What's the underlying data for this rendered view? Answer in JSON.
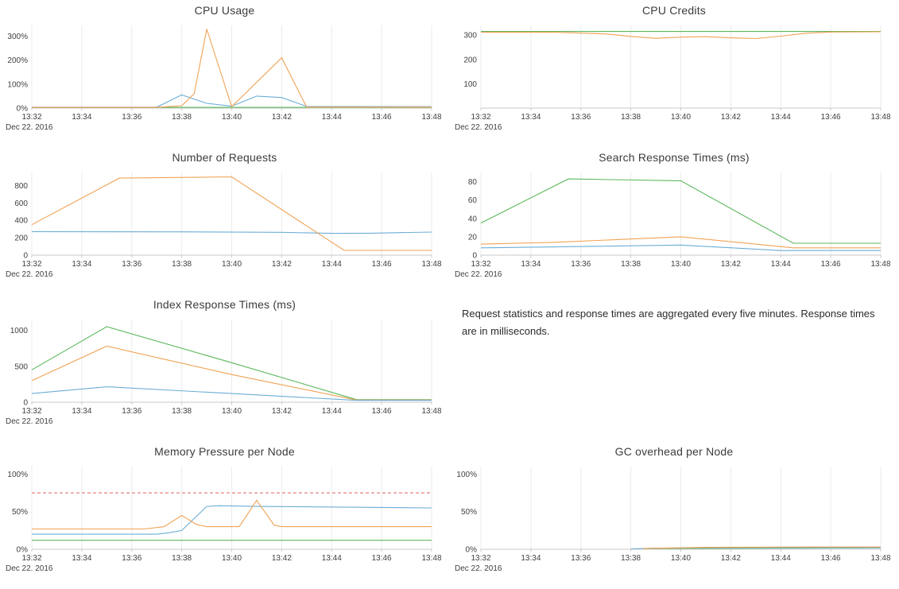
{
  "note": {
    "text": "Request statistics and response times are aggregated every five minutes. Response times are in milliseconds."
  },
  "palette": {
    "blue": "#6baed6",
    "orange": "#f0a254",
    "green": "#5cb85c",
    "threshold_red": "#e57373",
    "axis": "#c8c8c8",
    "grid": "#ebebeb",
    "tick_text": "#404040"
  },
  "chart_data": [
    {
      "title": "CPU Usage",
      "type": "line",
      "x_date": "Dec 22. 2016",
      "x_ticks": [
        "13:32",
        "13:34",
        "13:36",
        "13:38",
        "13:40",
        "13:42",
        "13:44",
        "13:46",
        "13:48"
      ],
      "xlim": [
        0,
        16
      ],
      "ylim": [
        0,
        345
      ],
      "grid": "vertical",
      "legend": "none",
      "y_ticks": [
        {
          "v": 0,
          "label": "0%"
        },
        {
          "v": 100,
          "label": "100%"
        },
        {
          "v": 200,
          "label": "200%"
        },
        {
          "v": 300,
          "label": "300%"
        }
      ],
      "series": [
        {
          "name": "green",
          "color": "#5cb85c",
          "points": [
            [
              0,
              3
            ],
            [
              16,
              3
            ]
          ]
        },
        {
          "name": "blue",
          "color": "#6baed6",
          "points": [
            [
              0,
              4
            ],
            [
              5,
              4
            ],
            [
              6,
              55
            ],
            [
              7,
              20
            ],
            [
              8,
              8
            ],
            [
              9,
              50
            ],
            [
              10,
              44
            ],
            [
              11,
              7
            ],
            [
              16,
              6
            ]
          ]
        },
        {
          "name": "orange",
          "color": "#f0a254",
          "points": [
            [
              0,
              3
            ],
            [
              5,
              3
            ],
            [
              6,
              10
            ],
            [
              6.5,
              60
            ],
            [
              7,
              330
            ],
            [
              8,
              6
            ],
            [
              10,
              210
            ],
            [
              11,
              4
            ],
            [
              16,
              4
            ]
          ]
        }
      ]
    },
    {
      "title": "CPU Credits",
      "type": "line",
      "x_date": "Dec 22. 2016",
      "x_ticks": [
        "13:32",
        "13:34",
        "13:36",
        "13:38",
        "13:40",
        "13:42",
        "13:44",
        "13:46",
        "13:48"
      ],
      "xlim": [
        0,
        16
      ],
      "ylim": [
        0,
        340
      ],
      "grid": "vertical",
      "legend": "none",
      "y_ticks": [
        {
          "v": 100,
          "label": "100"
        },
        {
          "v": 200,
          "label": "200"
        },
        {
          "v": 300,
          "label": "300"
        }
      ],
      "series": [
        {
          "name": "green",
          "color": "#5cb85c",
          "points": [
            [
              0,
              315
            ],
            [
              16,
              315
            ]
          ]
        },
        {
          "name": "orange",
          "color": "#f0a254",
          "points": [
            [
              0,
              312
            ],
            [
              3,
              312
            ],
            [
              5,
              305
            ],
            [
              6,
              295
            ],
            [
              7,
              287
            ],
            [
              8,
              292
            ],
            [
              9,
              294
            ],
            [
              10,
              289
            ],
            [
              11,
              286
            ],
            [
              12,
              296
            ],
            [
              13,
              308
            ],
            [
              14,
              313
            ],
            [
              16,
              314
            ]
          ]
        }
      ]
    },
    {
      "title": "Number of Requests",
      "type": "line",
      "x_date": "Dec 22. 2016",
      "x_ticks": [
        "13:32",
        "13:34",
        "13:36",
        "13:38",
        "13:40",
        "13:42",
        "13:44",
        "13:46",
        "13:48"
      ],
      "xlim": [
        0,
        16
      ],
      "ylim": [
        0,
        950
      ],
      "grid": "vertical",
      "legend": "none",
      "y_ticks": [
        {
          "v": 0,
          "label": "0"
        },
        {
          "v": 200,
          "label": "200"
        },
        {
          "v": 400,
          "label": "400"
        },
        {
          "v": 600,
          "label": "600"
        },
        {
          "v": 800,
          "label": "800"
        }
      ],
      "series": [
        {
          "name": "blue",
          "color": "#6baed6",
          "points": [
            [
              0,
              270
            ],
            [
              6,
              268
            ],
            [
              10,
              262
            ],
            [
              12,
              250
            ],
            [
              13.5,
              252
            ],
            [
              16,
              265
            ]
          ]
        },
        {
          "name": "orange",
          "color": "#f0a254",
          "points": [
            [
              0,
              350
            ],
            [
              3.5,
              885
            ],
            [
              8,
              900
            ],
            [
              12.5,
              55
            ],
            [
              16,
              55
            ]
          ]
        }
      ]
    },
    {
      "title": "Search Response Times (ms)",
      "type": "line",
      "x_date": "Dec 22. 2016",
      "x_ticks": [
        "13:32",
        "13:34",
        "13:36",
        "13:38",
        "13:40",
        "13:42",
        "13:44",
        "13:46",
        "13:48"
      ],
      "xlim": [
        0,
        16
      ],
      "ylim": [
        0,
        90
      ],
      "grid": "vertical",
      "legend": "none",
      "y_ticks": [
        {
          "v": 0,
          "label": "0"
        },
        {
          "v": 20,
          "label": "20"
        },
        {
          "v": 40,
          "label": "40"
        },
        {
          "v": 60,
          "label": "60"
        },
        {
          "v": 80,
          "label": "80"
        }
      ],
      "series": [
        {
          "name": "green",
          "color": "#5cb85c",
          "points": [
            [
              0,
              35
            ],
            [
              3.5,
              83
            ],
            [
              8,
              81
            ],
            [
              12.5,
              13
            ],
            [
              16,
              13
            ]
          ]
        },
        {
          "name": "orange",
          "color": "#f0a254",
          "points": [
            [
              0,
              12
            ],
            [
              3,
              14
            ],
            [
              8,
              20
            ],
            [
              12.5,
              8
            ],
            [
              16,
              8
            ]
          ]
        },
        {
          "name": "blue",
          "color": "#6baed6",
          "points": [
            [
              0,
              8
            ],
            [
              3,
              9
            ],
            [
              8,
              11
            ],
            [
              12,
              5
            ],
            [
              16,
              5
            ]
          ]
        }
      ]
    },
    {
      "title": "Index Response Times (ms)",
      "type": "line",
      "x_date": "Dec 22. 2016",
      "x_ticks": [
        "13:32",
        "13:34",
        "13:36",
        "13:38",
        "13:40",
        "13:42",
        "13:44",
        "13:46",
        "13:48"
      ],
      "xlim": [
        0,
        16
      ],
      "ylim": [
        0,
        1150
      ],
      "grid": "vertical",
      "legend": "none",
      "y_ticks": [
        {
          "v": 0,
          "label": "0"
        },
        {
          "v": 500,
          "label": "500"
        },
        {
          "v": 1000,
          "label": "1000"
        }
      ],
      "series": [
        {
          "name": "green",
          "color": "#5cb85c",
          "points": [
            [
              0,
              450
            ],
            [
              3,
              1050
            ],
            [
              8,
              550
            ],
            [
              13,
              35
            ],
            [
              16,
              35
            ]
          ]
        },
        {
          "name": "orange",
          "color": "#f0a254",
          "points": [
            [
              0,
              300
            ],
            [
              3,
              780
            ],
            [
              8,
              385
            ],
            [
              13,
              30
            ],
            [
              16,
              30
            ]
          ]
        },
        {
          "name": "blue",
          "color": "#6baed6",
          "points": [
            [
              0,
              120
            ],
            [
              3,
              215
            ],
            [
              8,
              120
            ],
            [
              13,
              25
            ],
            [
              16,
              25
            ]
          ]
        }
      ]
    },
    {
      "title": "Memory Pressure per Node",
      "type": "line",
      "x_date": "Dec 22. 2016",
      "x_ticks": [
        "13:32",
        "13:34",
        "13:36",
        "13:38",
        "13:40",
        "13:42",
        "13:44",
        "13:46",
        "13:48"
      ],
      "xlim": [
        0,
        16
      ],
      "ylim": [
        0,
        110
      ],
      "grid": "vertical",
      "legend": "none",
      "y_ticks": [
        {
          "v": 0,
          "label": "0%"
        },
        {
          "v": 50,
          "label": "50%"
        },
        {
          "v": 100,
          "label": "100%"
        }
      ],
      "series": [
        {
          "name": "threshold",
          "color": "#e57373",
          "dash": true,
          "points": [
            [
              0,
              75
            ],
            [
              16,
              75
            ]
          ]
        },
        {
          "name": "green",
          "color": "#5cb85c",
          "points": [
            [
              0,
              12
            ],
            [
              16,
              12
            ]
          ]
        },
        {
          "name": "blue",
          "color": "#6baed6",
          "points": [
            [
              0,
              20
            ],
            [
              5,
              20
            ],
            [
              5.5,
              22
            ],
            [
              6,
              25
            ],
            [
              7,
              57
            ],
            [
              7.5,
              58
            ],
            [
              9,
              57
            ],
            [
              16,
              55
            ]
          ]
        },
        {
          "name": "orange",
          "color": "#f0a254",
          "points": [
            [
              0,
              27
            ],
            [
              4.5,
              27
            ],
            [
              5.3,
              30
            ],
            [
              6,
              45
            ],
            [
              6.6,
              33
            ],
            [
              7,
              30
            ],
            [
              8.3,
              30
            ],
            [
              9,
              65
            ],
            [
              9.7,
              32
            ],
            [
              10,
              30
            ],
            [
              16,
              30
            ]
          ]
        }
      ]
    },
    {
      "title": "GC overhead per Node",
      "type": "line",
      "x_date": "Dec 22. 2016",
      "x_ticks": [
        "13:32",
        "13:34",
        "13:36",
        "13:38",
        "13:40",
        "13:42",
        "13:44",
        "13:46",
        "13:48"
      ],
      "xlim": [
        0,
        16
      ],
      "ylim": [
        0,
        110
      ],
      "grid": "vertical",
      "legend": "none",
      "y_ticks": [
        {
          "v": 0,
          "label": "0%"
        },
        {
          "v": 50,
          "label": "50%"
        },
        {
          "v": 100,
          "label": "100%"
        }
      ],
      "series": [
        {
          "name": "green",
          "color": "#5cb85c",
          "points": [
            [
              6.5,
              1
            ],
            [
              16,
              1.8
            ]
          ]
        },
        {
          "name": "blue",
          "color": "#6baed6",
          "points": [
            [
              6,
              0.5
            ],
            [
              7,
              1.5
            ],
            [
              9,
              2
            ],
            [
              16,
              2
            ]
          ]
        },
        {
          "name": "orange",
          "color": "#f0a254",
          "points": [
            [
              6.5,
              1
            ],
            [
              9,
              2.5
            ],
            [
              13,
              3
            ],
            [
              16,
              3
            ]
          ]
        }
      ]
    }
  ]
}
